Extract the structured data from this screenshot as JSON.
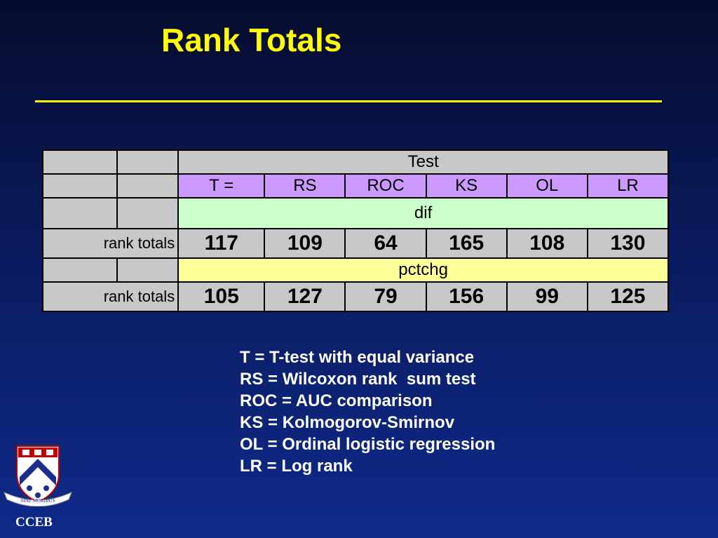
{
  "title": "Rank Totals",
  "table": {
    "test_header": "Test",
    "tests": [
      "T =",
      "RS",
      "ROC",
      "KS",
      "OL",
      "LR"
    ],
    "sections": [
      {
        "label": "dif",
        "row_label": "rank totals",
        "values": [
          "117",
          "109",
          "64",
          "165",
          "108",
          "130"
        ],
        "color": "#ccffcc"
      },
      {
        "label": "pctchg",
        "row_label": "rank totals",
        "values": [
          "105",
          "127",
          "79",
          "156",
          "99",
          "125"
        ],
        "color": "#ffff99"
      }
    ],
    "colors": {
      "header": "#c8c8c8",
      "tests_row": "#cc99ff"
    }
  },
  "legend": [
    "T = T-test with equal variance",
    "RS = Wilcoxon rank  sum test",
    "ROC = AUC comparison",
    "KS = Kolmogorov-Smirnov",
    "OL = Ordinal logistic regression",
    "LR = Log rank"
  ],
  "logo": {
    "name": "penn-shield-logo",
    "motto": "SINE MORIBUS",
    "caption": "CCEB"
  },
  "colors": {
    "background_top": "#060c2e",
    "background_bottom": "#0f2a8a",
    "title": "#ffff00",
    "legend_text": "#ffffff"
  }
}
